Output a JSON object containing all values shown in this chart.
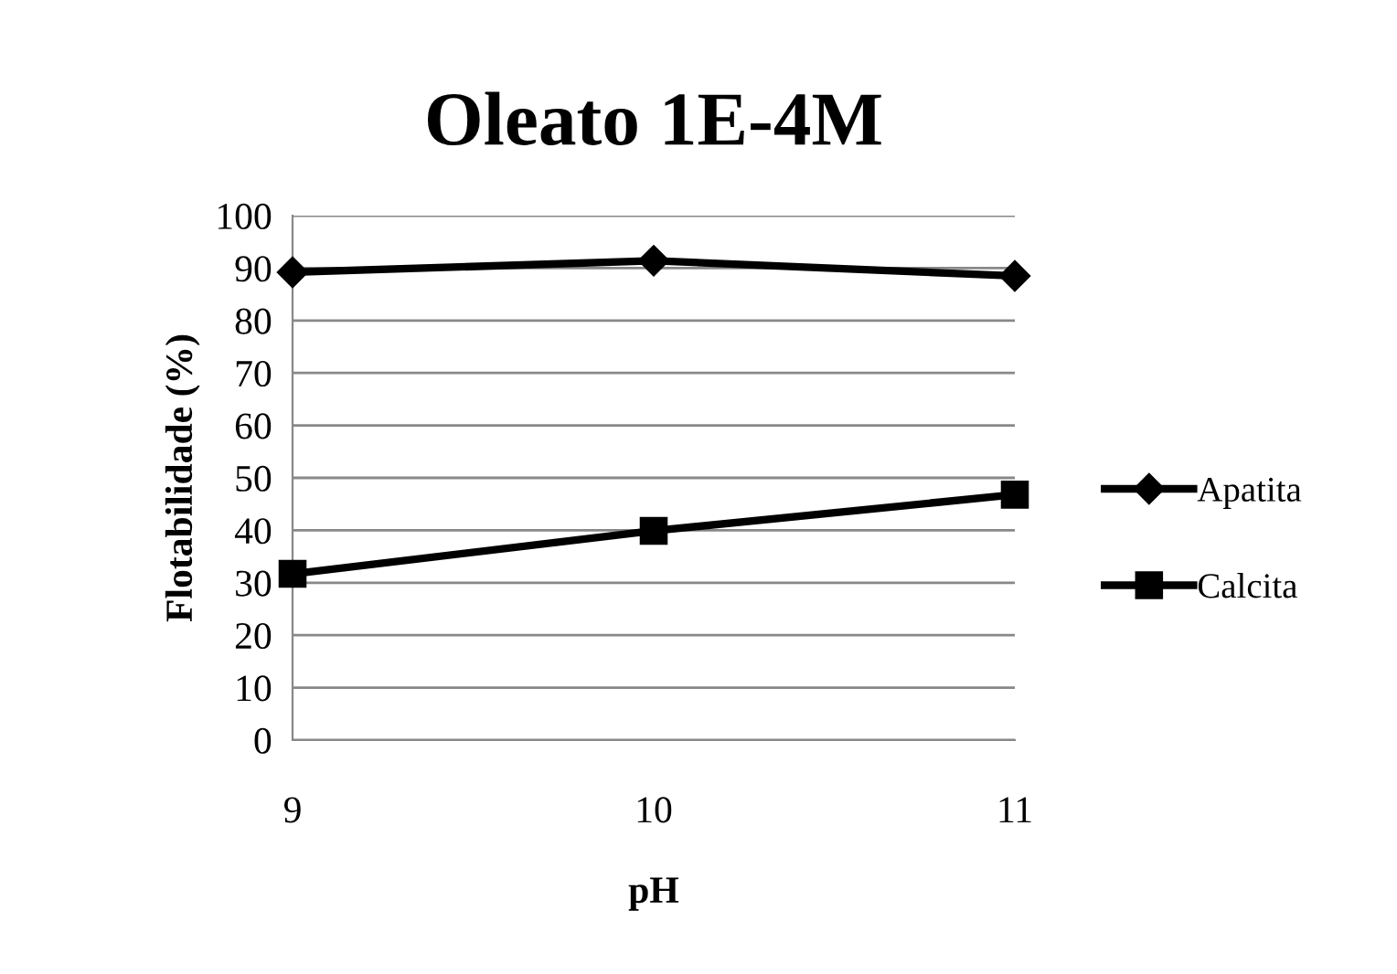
{
  "chart_data": {
    "type": "line",
    "title": "Oleato 1E-4M",
    "xlabel": "pH",
    "ylabel": "Flotabilidade (%)",
    "categories": [
      "9",
      "10",
      "11"
    ],
    "series": [
      {
        "name": "Apatita",
        "color": "#000000",
        "values": [
          89.2,
          91.4,
          88.5
        ],
        "marker": "diamond"
      },
      {
        "name": "Calcita",
        "color": "#000000",
        "values": [
          31.7,
          39.9,
          46.8
        ],
        "marker": "square"
      }
    ],
    "ylim": [
      0,
      100
    ],
    "yticks": [
      0,
      10,
      20,
      30,
      40,
      50,
      60,
      70,
      80,
      90,
      100
    ],
    "grid": "y",
    "legend": "right",
    "line_style": "solid"
  }
}
